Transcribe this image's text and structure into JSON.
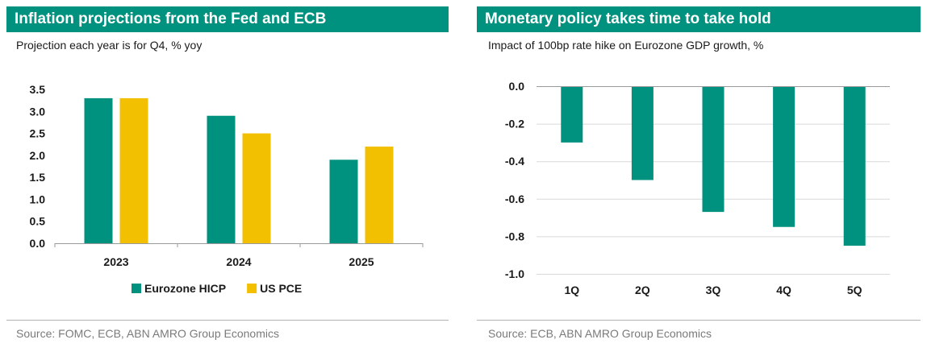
{
  "left": {
    "title": "Inflation projections from the Fed and ECB",
    "subtitle": "Projection each year is for Q4, % yoy",
    "source": "Source: FOMC, ECB, ABN AMRO Group Economics"
  },
  "right": {
    "title": "Monetary policy takes time to take hold",
    "subtitle": "Impact of 100bp rate hike on Eurozone GDP growth, %",
    "source": "Source: ECB, ABN AMRO Group Economics"
  },
  "colors": {
    "teal": "#00927f",
    "gold": "#f2c000"
  },
  "chart_data": [
    {
      "type": "bar",
      "title": "Inflation projections from the Fed and ECB",
      "subtitle": "Projection each year is for Q4, % yoy",
      "categories": [
        "2023",
        "2024",
        "2025"
      ],
      "series": [
        {
          "name": "Eurozone HICP",
          "values": [
            3.3,
            2.9,
            1.9
          ],
          "color": "#00927f"
        },
        {
          "name": "US PCE",
          "values": [
            3.3,
            2.5,
            2.2
          ],
          "color": "#f2c000"
        }
      ],
      "ylim": [
        0,
        3.5
      ],
      "yticks": [
        "0.0",
        "0.5",
        "1.0",
        "1.5",
        "2.0",
        "2.5",
        "3.0",
        "3.5"
      ],
      "grid": false,
      "legend": "bottom"
    },
    {
      "type": "bar",
      "title": "Monetary policy takes time to take hold",
      "subtitle": "Impact of 100bp rate hike on Eurozone GDP growth, %",
      "categories": [
        "1Q",
        "2Q",
        "3Q",
        "4Q",
        "5Q"
      ],
      "values": [
        -0.3,
        -0.5,
        -0.67,
        -0.75,
        -0.85
      ],
      "color": "#00927f",
      "ylim": [
        -1.0,
        0.0
      ],
      "yticks": [
        "0.0",
        "-0.2",
        "-0.4",
        "-0.6",
        "-0.8",
        "-1.0"
      ],
      "grid": true,
      "legend": "none"
    }
  ]
}
